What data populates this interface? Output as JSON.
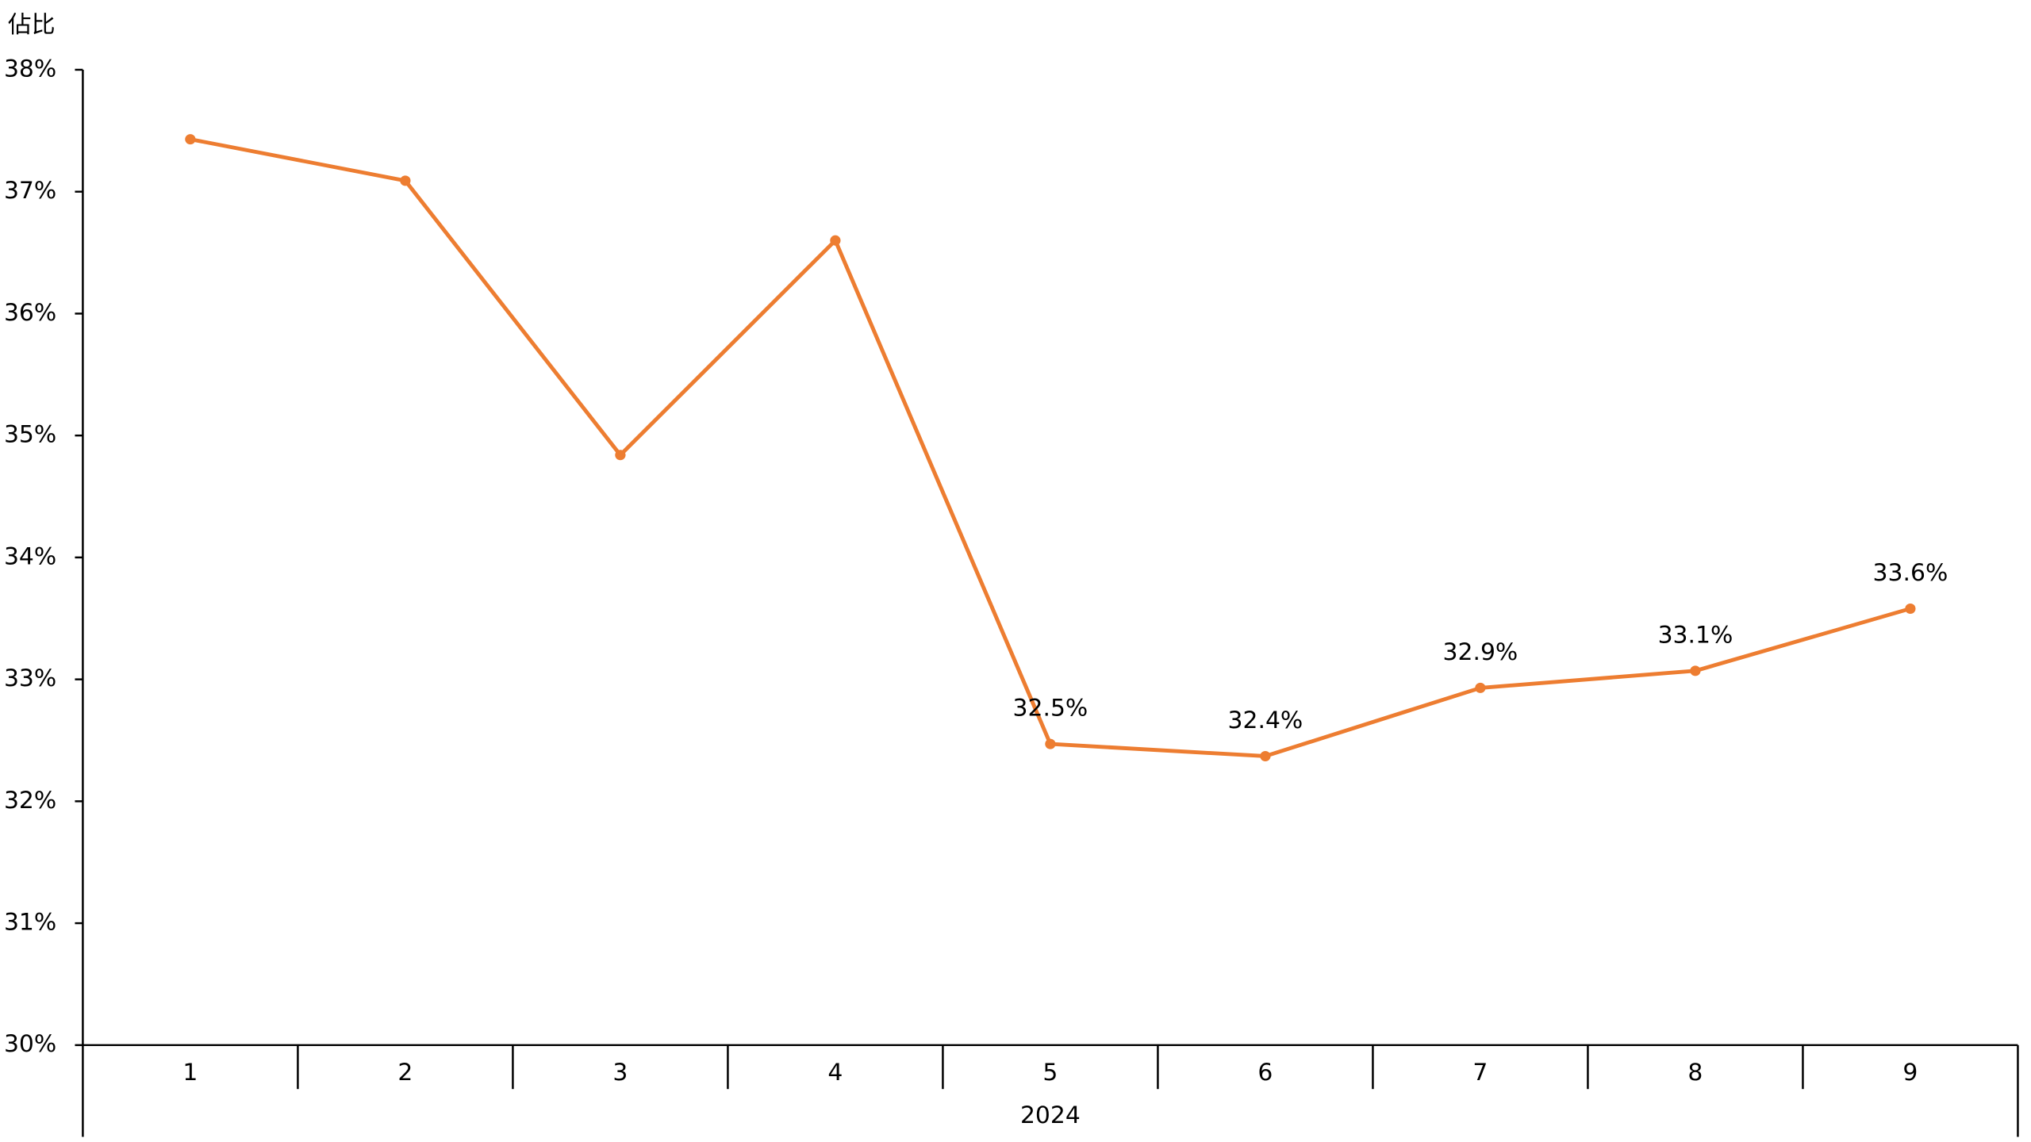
{
  "chart_data": {
    "type": "line",
    "ylabel": "佔比",
    "xlabel": "2024",
    "categories": [
      "1",
      "2",
      "3",
      "4",
      "5",
      "6",
      "7",
      "8",
      "9"
    ],
    "series": [
      {
        "color": "#ed7d31",
        "values": [
          37.43,
          37.09,
          34.84,
          36.6,
          32.47,
          32.37,
          32.93,
          33.07,
          33.58
        ],
        "value_labels": [
          null,
          null,
          null,
          null,
          "32.5%",
          "32.4%",
          "32.9%",
          "33.1%",
          "33.6%"
        ]
      }
    ],
    "ylim": [
      30,
      38
    ],
    "yticks": [
      {
        "value": 30,
        "label": "30%"
      },
      {
        "value": 31,
        "label": "31%"
      },
      {
        "value": 32,
        "label": "32%"
      },
      {
        "value": 33,
        "label": "33%"
      },
      {
        "value": 34,
        "label": "34%"
      },
      {
        "value": 35,
        "label": "35%"
      },
      {
        "value": 36,
        "label": "36%"
      },
      {
        "value": 37,
        "label": "37%"
      },
      {
        "value": 38,
        "label": "38%"
      }
    ],
    "grid": false
  }
}
